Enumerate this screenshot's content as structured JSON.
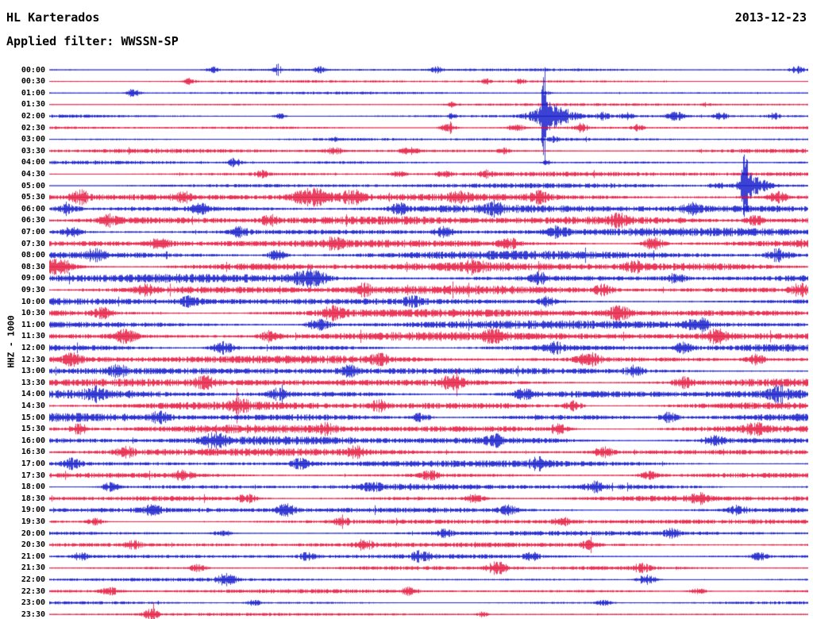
{
  "header": {
    "station": "HL Karterados",
    "date": "2013-12-23",
    "filter_label": "Applied filter: WWSSN-SP"
  },
  "axis": {
    "ylabel": "HHZ - 1000"
  },
  "chart_data": {
    "type": "line",
    "title": "HL Karterados",
    "subtitle": "Applied filter: WWSSN-SP",
    "date": "2013-12-23",
    "channel_scale_label": "HHZ - 1000",
    "description": "24-hour helicorder seismogram, 48 rows of 30 minutes each, traces alternate blue/red",
    "row_duration_minutes": 30,
    "rows_count": 48,
    "trace_colors": {
      "blue": "#0a12c8",
      "red": "#e4113a"
    },
    "notable_events": [
      {
        "row": "02:00",
        "x_fraction": 0.65,
        "description": "large impulsive spike with coda"
      },
      {
        "row": "05:00",
        "x_fraction": 0.92,
        "description": "large spike near right edge"
      },
      {
        "row": "08:30",
        "x_fraction": 0.01,
        "description": "strong burst at row start"
      },
      {
        "row": "09:00",
        "x_fraction": 0.34,
        "description": "strong burst"
      }
    ],
    "activity_note": "background noise low 00:00-05:00, strong continuous microseismic activity ~05:30-17:00, gradually decreasing to low after 20:00",
    "rows": [
      {
        "t": "00:00",
        "color": "blue",
        "a": 1.3,
        "b": [
          [
            0.215,
            2.5,
            5
          ],
          [
            0.3,
            2,
            4
          ],
          [
            0.355,
            2.5,
            5
          ],
          [
            0.51,
            2.5,
            5
          ],
          [
            0.985,
            3,
            6
          ]
        ]
      },
      {
        "t": "00:30",
        "color": "red",
        "a": 1.2,
        "b": [
          [
            0.185,
            2.5,
            5
          ],
          [
            0.575,
            2,
            4
          ],
          [
            0.62,
            2,
            4
          ]
        ]
      },
      {
        "t": "01:00",
        "color": "blue",
        "a": 1.2,
        "b": [
          [
            0.11,
            3.5,
            6
          ],
          [
            0.655,
            1.5,
            4
          ]
        ]
      },
      {
        "t": "01:30",
        "color": "red",
        "a": 1.3,
        "b": [
          [
            0.53,
            2,
            5
          ],
          [
            0.865,
            1.5,
            4
          ]
        ]
      },
      {
        "t": "02:00",
        "color": "blue",
        "a": 1.5,
        "b": [
          [
            0.303,
            2.5,
            5
          ],
          [
            0.53,
            2,
            4
          ],
          [
            0.652,
            42,
            3
          ],
          [
            0.662,
            9,
            18
          ],
          [
            0.73,
            3,
            6
          ],
          [
            0.76,
            3,
            6
          ],
          [
            0.825,
            3.5,
            7
          ],
          [
            0.885,
            3,
            6
          ],
          [
            0.955,
            2.5,
            5
          ]
        ]
      },
      {
        "t": "02:30",
        "color": "red",
        "a": 1.6,
        "b": [
          [
            0.525,
            4,
            7
          ],
          [
            0.615,
            3.5,
            6
          ],
          [
            0.7,
            3.5,
            6
          ],
          [
            0.775,
            2.5,
            5
          ]
        ]
      },
      {
        "t": "03:00",
        "color": "blue",
        "a": 1.4,
        "b": [
          [
            0.375,
            1.5,
            4
          ],
          [
            0.665,
            2,
            4
          ]
        ]
      },
      {
        "t": "03:30",
        "color": "red",
        "a": 2.0,
        "b": [
          [
            0.375,
            2.5,
            8
          ],
          [
            0.475,
            2.5,
            8
          ],
          [
            0.6,
            2,
            6
          ]
        ]
      },
      {
        "t": "04:00",
        "color": "blue",
        "a": 1.7,
        "b": [
          [
            0.244,
            3.5,
            6
          ],
          [
            0.655,
            2,
            5
          ]
        ]
      },
      {
        "t": "04:30",
        "color": "red",
        "a": 2.2,
        "b": [
          [
            0.28,
            2.5,
            6
          ],
          [
            0.46,
            2.5,
            6
          ],
          [
            0.52,
            2.5,
            6
          ],
          [
            0.575,
            2.5,
            6
          ]
        ]
      },
      {
        "t": "05:00",
        "color": "blue",
        "a": 2.2,
        "b": [
          [
            0.88,
            3,
            6
          ],
          [
            0.916,
            22,
            4
          ],
          [
            0.928,
            7,
            14
          ]
        ]
      },
      {
        "t": "05:30",
        "color": "red",
        "a": 3.3,
        "b": [
          [
            0.04,
            5,
            8
          ],
          [
            0.175,
            4,
            8
          ],
          [
            0.345,
            7,
            16
          ],
          [
            0.4,
            5,
            10
          ],
          [
            0.54,
            4,
            8
          ],
          [
            0.645,
            4,
            8
          ],
          [
            0.96,
            4,
            8
          ]
        ]
      },
      {
        "t": "06:00",
        "color": "blue",
        "a": 3.8,
        "b": [
          [
            0.025,
            4,
            8
          ],
          [
            0.2,
            4,
            8
          ],
          [
            0.46,
            4,
            8
          ],
          [
            0.585,
            4,
            8
          ],
          [
            0.845,
            4,
            8
          ]
        ]
      },
      {
        "t": "06:30",
        "color": "red",
        "a": 3.8,
        "b": [
          [
            0.08,
            4,
            8
          ],
          [
            0.29,
            4,
            8
          ],
          [
            0.75,
            4,
            8
          ],
          [
            0.93,
            4,
            8
          ]
        ]
      },
      {
        "t": "07:00",
        "color": "blue",
        "a": 3.8,
        "b": [
          [
            0.03,
            4,
            8
          ],
          [
            0.25,
            4,
            8
          ],
          [
            0.52,
            4,
            8
          ],
          [
            0.67,
            4,
            8
          ]
        ]
      },
      {
        "t": "07:30",
        "color": "red",
        "a": 3.9,
        "b": [
          [
            0.145,
            4,
            8
          ],
          [
            0.375,
            4,
            8
          ],
          [
            0.605,
            4,
            8
          ],
          [
            0.795,
            5,
            10
          ]
        ]
      },
      {
        "t": "08:00",
        "color": "blue",
        "a": 4.0,
        "b": [
          [
            0.06,
            4,
            8
          ],
          [
            0.3,
            4,
            8
          ],
          [
            0.96,
            5,
            10
          ]
        ]
      },
      {
        "t": "08:30",
        "color": "red",
        "a": 4.2,
        "b": [
          [
            0.013,
            7,
            12
          ],
          [
            0.56,
            4,
            8
          ],
          [
            0.77,
            4,
            8
          ]
        ]
      },
      {
        "t": "09:00",
        "color": "blue",
        "a": 4.2,
        "b": [
          [
            0.343,
            7,
            14
          ],
          [
            0.645,
            4,
            8
          ],
          [
            0.825,
            4,
            8
          ]
        ]
      },
      {
        "t": "09:30",
        "color": "red",
        "a": 4.0,
        "b": [
          [
            0.125,
            4,
            8
          ],
          [
            0.415,
            4,
            8
          ],
          [
            0.73,
            4,
            8
          ],
          [
            0.99,
            5,
            8
          ]
        ]
      },
      {
        "t": "10:00",
        "color": "blue",
        "a": 3.9,
        "b": [
          [
            0.185,
            4,
            8
          ],
          [
            0.48,
            4,
            8
          ],
          [
            0.655,
            4,
            8
          ]
        ]
      },
      {
        "t": "10:30",
        "color": "red",
        "a": 4.0,
        "b": [
          [
            0.07,
            4,
            8
          ],
          [
            0.375,
            5,
            10
          ],
          [
            0.75,
            5,
            10
          ]
        ]
      },
      {
        "t": "11:00",
        "color": "blue",
        "a": 3.9,
        "b": [
          [
            0.355,
            5,
            10
          ],
          [
            0.855,
            5,
            10
          ]
        ]
      },
      {
        "t": "11:30",
        "color": "red",
        "a": 4.0,
        "b": [
          [
            0.1,
            5,
            10
          ],
          [
            0.29,
            4,
            8
          ],
          [
            0.585,
            4,
            8
          ],
          [
            0.88,
            5,
            10
          ]
        ]
      },
      {
        "t": "12:00",
        "color": "blue",
        "a": 3.7,
        "b": [
          [
            0.228,
            5,
            10
          ],
          [
            0.665,
            4,
            8
          ],
          [
            0.835,
            4,
            8
          ]
        ]
      },
      {
        "t": "12:30",
        "color": "red",
        "a": 3.9,
        "b": [
          [
            0.03,
            4,
            8
          ],
          [
            0.435,
            4,
            8
          ],
          [
            0.71,
            5,
            10
          ],
          [
            0.93,
            4,
            8
          ]
        ]
      },
      {
        "t": "13:00",
        "color": "blue",
        "a": 3.7,
        "b": [
          [
            0.09,
            4,
            8
          ],
          [
            0.395,
            4,
            8
          ],
          [
            0.77,
            4,
            8
          ]
        ]
      },
      {
        "t": "13:30",
        "color": "red",
        "a": 3.9,
        "b": [
          [
            0.205,
            4,
            8
          ],
          [
            0.53,
            5,
            10
          ],
          [
            0.835,
            4,
            8
          ]
        ]
      },
      {
        "t": "14:00",
        "color": "blue",
        "a": 3.9,
        "b": [
          [
            0.06,
            4,
            8
          ],
          [
            0.3,
            4,
            8
          ],
          [
            0.625,
            4,
            8
          ],
          [
            0.96,
            4,
            8
          ]
        ]
      },
      {
        "t": "14:30",
        "color": "red",
        "a": 3.9,
        "b": [
          [
            0.25,
            4,
            8
          ],
          [
            0.435,
            4,
            8
          ],
          [
            0.69,
            4,
            8
          ]
        ]
      },
      {
        "t": "15:00",
        "color": "blue",
        "a": 3.9,
        "b": [
          [
            0.145,
            4,
            8
          ],
          [
            0.49,
            4,
            8
          ],
          [
            0.815,
            4,
            8
          ]
        ]
      },
      {
        "t": "15:30",
        "color": "red",
        "a": 3.9,
        "b": [
          [
            0.04,
            4,
            8
          ],
          [
            0.365,
            4,
            8
          ],
          [
            0.67,
            4,
            8
          ],
          [
            0.93,
            4,
            8
          ]
        ]
      },
      {
        "t": "16:00",
        "color": "blue",
        "a": 3.9,
        "b": [
          [
            0.218,
            5,
            10
          ],
          [
            0.585,
            4,
            8
          ],
          [
            0.875,
            4,
            8
          ]
        ]
      },
      {
        "t": "16:30",
        "color": "red",
        "a": 3.4,
        "b": [
          [
            0.1,
            4,
            8
          ],
          [
            0.405,
            4,
            8
          ],
          [
            0.73,
            4,
            8
          ]
        ]
      },
      {
        "t": "17:00",
        "color": "blue",
        "a": 3.1,
        "b": [
          [
            0.03,
            4,
            8
          ],
          [
            0.33,
            4,
            8
          ],
          [
            0.645,
            4,
            8
          ]
        ]
      },
      {
        "t": "17:30",
        "color": "red",
        "a": 2.9,
        "b": [
          [
            0.175,
            3.5,
            8
          ],
          [
            0.5,
            3.5,
            8
          ],
          [
            0.79,
            3.5,
            8
          ]
        ]
      },
      {
        "t": "18:00",
        "color": "blue",
        "a": 2.9,
        "b": [
          [
            0.08,
            3.5,
            8
          ],
          [
            0.425,
            3.5,
            8
          ],
          [
            0.72,
            4,
            8
          ]
        ]
      },
      {
        "t": "18:30",
        "color": "red",
        "a": 2.9,
        "b": [
          [
            0.26,
            3.5,
            8
          ],
          [
            0.56,
            3.5,
            8
          ],
          [
            0.855,
            3.5,
            8
          ]
        ]
      },
      {
        "t": "19:00",
        "color": "blue",
        "a": 2.7,
        "b": [
          [
            0.135,
            3.5,
            8
          ],
          [
            0.31,
            4.5,
            9
          ],
          [
            0.605,
            3.5,
            8
          ],
          [
            0.905,
            3.5,
            8
          ]
        ]
      },
      {
        "t": "19:30",
        "color": "red",
        "a": 2.5,
        "b": [
          [
            0.06,
            3,
            7
          ],
          [
            0.385,
            3,
            7
          ],
          [
            0.675,
            3,
            7
          ]
        ]
      },
      {
        "t": "20:00",
        "color": "blue",
        "a": 2.1,
        "b": [
          [
            0.228,
            3,
            7
          ],
          [
            0.52,
            3,
            7
          ],
          [
            0.82,
            3,
            7
          ]
        ]
      },
      {
        "t": "20:30",
        "color": "red",
        "a": 2.1,
        "b": [
          [
            0.11,
            3,
            7
          ],
          [
            0.415,
            4,
            8
          ],
          [
            0.71,
            3,
            7
          ]
        ]
      },
      {
        "t": "21:00",
        "color": "blue",
        "a": 2.1,
        "b": [
          [
            0.04,
            3,
            7
          ],
          [
            0.34,
            3,
            7
          ],
          [
            0.49,
            4,
            8
          ],
          [
            0.635,
            3,
            7
          ],
          [
            0.935,
            3,
            7
          ]
        ]
      },
      {
        "t": "21:30",
        "color": "red",
        "a": 1.9,
        "b": [
          [
            0.195,
            3,
            7
          ],
          [
            0.59,
            5,
            9
          ],
          [
            0.78,
            3,
            7
          ]
        ]
      },
      {
        "t": "22:00",
        "color": "blue",
        "a": 1.5,
        "b": [
          [
            0.233,
            4.5,
            8
          ],
          [
            0.787,
            4.5,
            8
          ]
        ]
      },
      {
        "t": "22:30",
        "color": "red",
        "a": 1.9,
        "b": [
          [
            0.08,
            3,
            7
          ],
          [
            0.475,
            3,
            7
          ],
          [
            0.855,
            3,
            7
          ]
        ]
      },
      {
        "t": "23:00",
        "color": "blue",
        "a": 1.4,
        "b": [
          [
            0.27,
            2.5,
            6
          ],
          [
            0.73,
            2.5,
            6
          ]
        ]
      },
      {
        "t": "23:30",
        "color": "red",
        "a": 1.3,
        "b": [
          [
            0.134,
            5,
            6
          ],
          [
            0.57,
            2,
            5
          ]
        ]
      }
    ]
  }
}
